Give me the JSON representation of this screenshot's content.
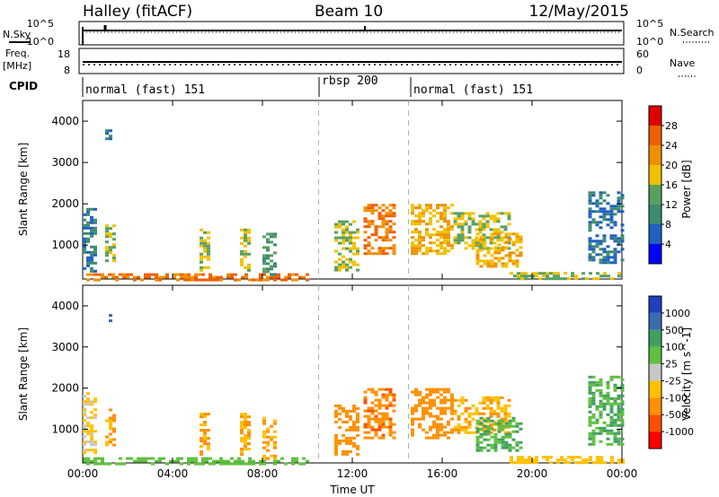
{
  "header": {
    "station": "Halley (fitACF)",
    "beam": "Beam 10",
    "date": "12/May/2015"
  },
  "left_labels": {
    "nsky": "N.Sky",
    "freq": "Freq.",
    "freq_unit": "[MHz]",
    "cpid": "CPID"
  },
  "right_labels": {
    "nsearch": "N.Search",
    "nave": "Nave"
  },
  "top_ticks": {
    "noise_left_high": "10^5",
    "noise_left_low": "10^0",
    "noise_right_high": "10^5",
    "noise_right_low": "10^0",
    "freq_high": "18",
    "freq_low": "8",
    "nave_high": "60",
    "nave_low": "0"
  },
  "cpid_segments": [
    {
      "label": "normal (fast) 151"
    },
    {
      "label": "rbsp 200"
    },
    {
      "label": "normal (fast) 151"
    }
  ],
  "colors": {
    "power_scale": [
      "#0000ff",
      "#2060c0",
      "#3c8c70",
      "#58a060",
      "#f0c000",
      "#f09000",
      "#f06000",
      "#e00000"
    ],
    "velocity_scale": [
      "#ff0000",
      "#ff5000",
      "#ff9000",
      "#ffc000",
      "#c8c8c8",
      "#60c040",
      "#40a060",
      "#3a6cb0",
      "#2040c0"
    ],
    "dashed_marker": "#b0b0b0"
  },
  "chart_data": [
    {
      "type": "heatmap",
      "title": "",
      "xlabel": "",
      "ylabel": "Slant Range [km]",
      "colorbar_label": "Power [dB]",
      "colorbar_ticks": [
        "4",
        "8",
        "12",
        "16",
        "20",
        "24",
        "28"
      ],
      "xticks": [
        "00:00",
        "04:00",
        "08:00",
        "12:00",
        "16:00",
        "20:00",
        "00:00"
      ],
      "yticks": [
        "1000",
        "2000",
        "3000",
        "4000"
      ],
      "x_range_hours": [
        0,
        24
      ],
      "y_range_km": [
        180,
        4500
      ],
      "cpid_boundaries_hours": [
        10.5,
        14.5
      ],
      "echo_regions": [
        {
          "t": [
            0.0,
            10.0
          ],
          "r": [
            180,
            320
          ],
          "level": 24
        },
        {
          "t": [
            0.0,
            0.6
          ],
          "r": [
            400,
            1900
          ],
          "level": 8
        },
        {
          "t": [
            1.0,
            1.2
          ],
          "r": [
            3550,
            3800
          ],
          "level": 8
        },
        {
          "t": [
            1.0,
            1.4
          ],
          "r": [
            600,
            1500
          ],
          "level": 16
        },
        {
          "t": [
            5.2,
            5.6
          ],
          "r": [
            400,
            1400
          ],
          "level": 16
        },
        {
          "t": [
            7.0,
            7.4
          ],
          "r": [
            400,
            1400
          ],
          "level": 16
        },
        {
          "t": [
            8.0,
            8.6
          ],
          "r": [
            300,
            1300
          ],
          "level": 12
        },
        {
          "t": [
            11.2,
            12.2
          ],
          "r": [
            400,
            1600
          ],
          "level": 16
        },
        {
          "t": [
            12.5,
            13.8
          ],
          "r": [
            800,
            2000
          ],
          "level": 24
        },
        {
          "t": [
            14.6,
            16.5
          ],
          "r": [
            800,
            2000
          ],
          "level": 20
        },
        {
          "t": [
            16.5,
            19.0
          ],
          "r": [
            900,
            1800
          ],
          "level": 16
        },
        {
          "t": [
            17.5,
            19.5
          ],
          "r": [
            500,
            1300
          ],
          "level": 20
        },
        {
          "t": [
            19.0,
            24.0
          ],
          "r": [
            200,
            350
          ],
          "level": 16
        },
        {
          "t": [
            22.5,
            24.0
          ],
          "r": [
            600,
            2300
          ],
          "level": 8
        }
      ]
    },
    {
      "type": "heatmap",
      "title": "",
      "xlabel": "Time UT",
      "ylabel": "Slant Range [km]",
      "colorbar_label": "Velocity [m s^-1]",
      "colorbar_ticks": [
        "1000",
        "500",
        "100",
        "25",
        "-25",
        "-100",
        "-500",
        "-1000"
      ],
      "xticks": [
        "00:00",
        "04:00",
        "08:00",
        "12:00",
        "16:00",
        "20:00",
        "00:00"
      ],
      "yticks": [
        "1000",
        "2000",
        "3000",
        "4000"
      ],
      "x_range_hours": [
        0,
        24
      ],
      "y_range_km": [
        180,
        4500
      ],
      "cpid_boundaries_hours": [
        10.5,
        14.5
      ],
      "echo_regions": [
        {
          "t": [
            0.0,
            10.0
          ],
          "r": [
            180,
            320
          ],
          "velocity": 50
        },
        {
          "t": [
            0.0,
            0.6
          ],
          "r": [
            400,
            1900
          ],
          "velocity": -25
        },
        {
          "t": [
            1.0,
            1.2
          ],
          "r": [
            3550,
            3800
          ],
          "velocity": 500
        },
        {
          "t": [
            1.0,
            1.4
          ],
          "r": [
            600,
            1500
          ],
          "velocity": -100
        },
        {
          "t": [
            5.2,
            5.6
          ],
          "r": [
            400,
            1400
          ],
          "velocity": -100
        },
        {
          "t": [
            7.0,
            7.4
          ],
          "r": [
            400,
            1400
          ],
          "velocity": -100
        },
        {
          "t": [
            8.0,
            8.6
          ],
          "r": [
            300,
            1300
          ],
          "velocity": -100
        },
        {
          "t": [
            11.2,
            12.2
          ],
          "r": [
            400,
            1600
          ],
          "velocity": -300
        },
        {
          "t": [
            12.5,
            13.8
          ],
          "r": [
            800,
            2000
          ],
          "velocity": -400
        },
        {
          "t": [
            14.6,
            16.5
          ],
          "r": [
            800,
            2000
          ],
          "velocity": -200
        },
        {
          "t": [
            16.5,
            19.0
          ],
          "r": [
            900,
            1800
          ],
          "velocity": -100
        },
        {
          "t": [
            17.5,
            19.5
          ],
          "r": [
            500,
            1300
          ],
          "velocity": 100
        },
        {
          "t": [
            19.0,
            24.0
          ],
          "r": [
            200,
            350
          ],
          "velocity": -50
        },
        {
          "t": [
            22.5,
            24.0
          ],
          "r": [
            600,
            2300
          ],
          "velocity": 100
        }
      ]
    }
  ]
}
